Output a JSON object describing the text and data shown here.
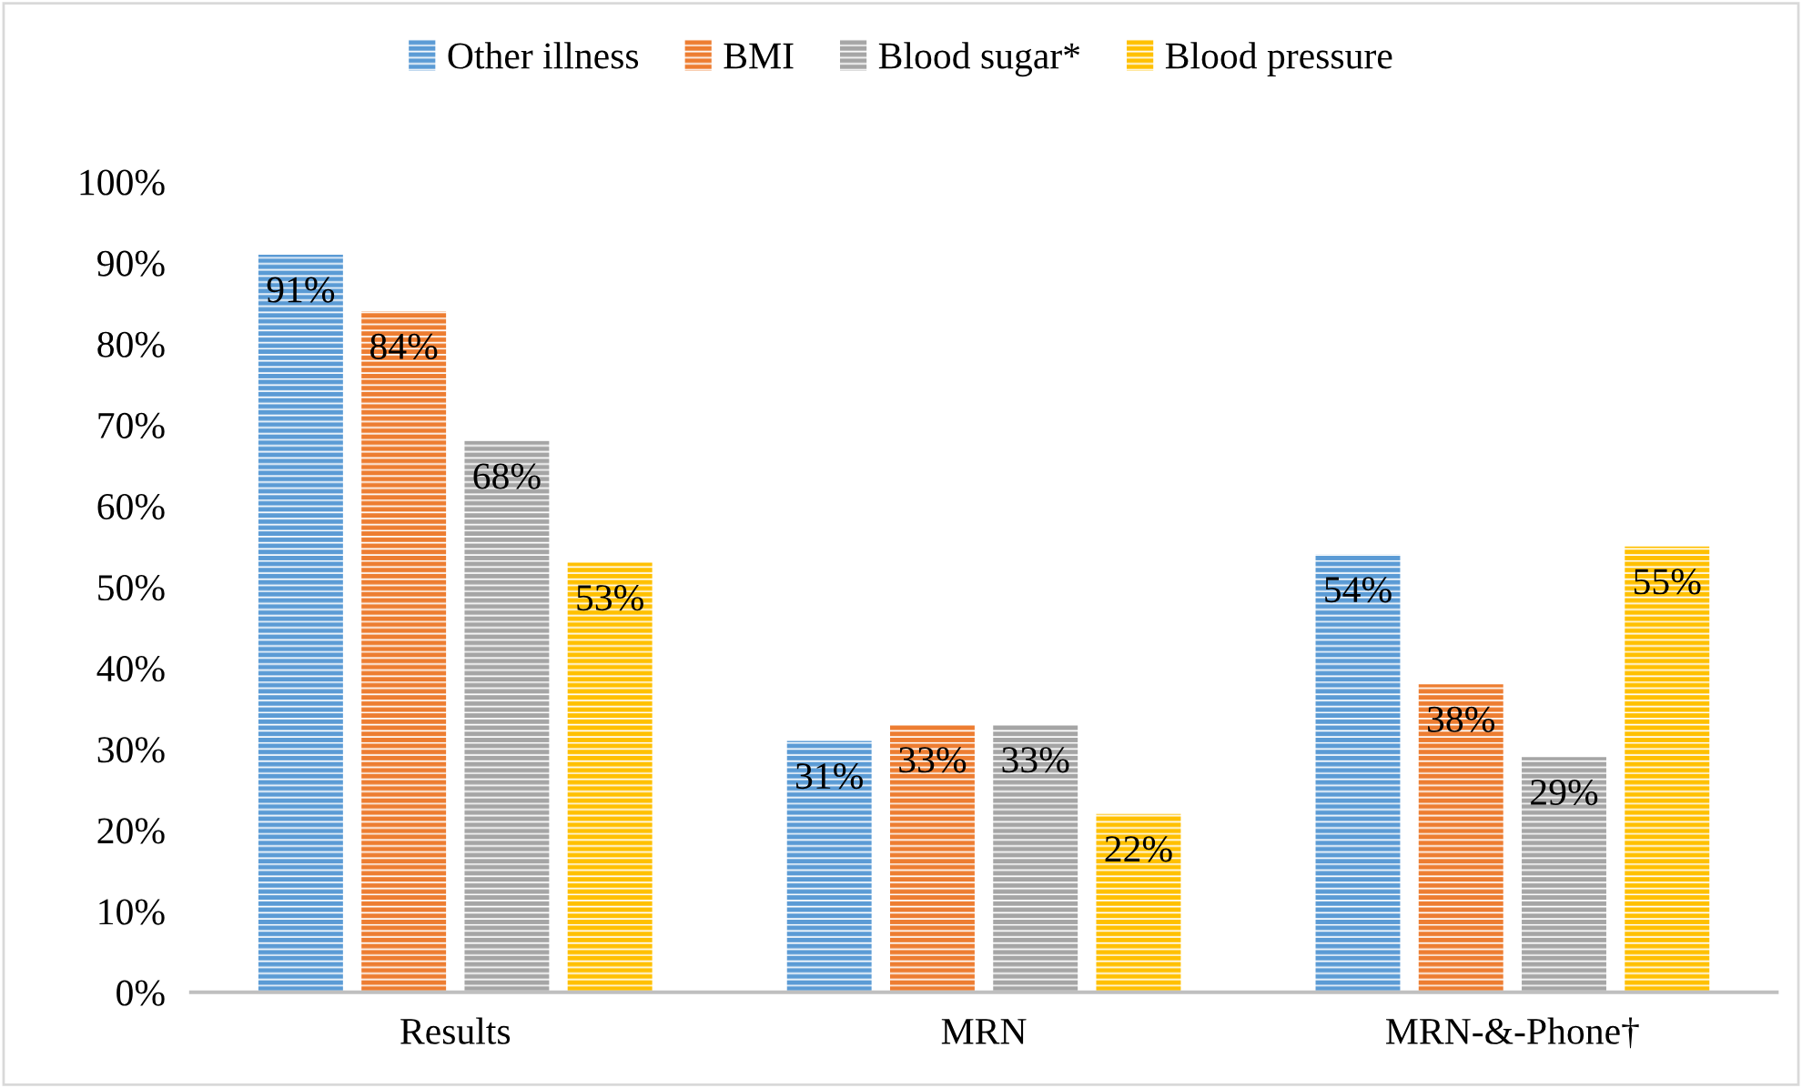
{
  "chart_data": {
    "type": "bar",
    "categories": [
      "Results",
      "MRN",
      "MRN-&-Phone†"
    ],
    "series": [
      {
        "name": "Other illness",
        "color": "#5b9bd5",
        "values": [
          91,
          31,
          54
        ],
        "value_labels": [
          "91%",
          "31%",
          "54%"
        ]
      },
      {
        "name": "BMI",
        "color": "#ed7d31",
        "values": [
          84,
          33,
          38
        ],
        "value_labels": [
          "84%",
          "33%",
          "38%"
        ]
      },
      {
        "name": "Blood sugar*",
        "color": "#a5a5a5",
        "values": [
          68,
          33,
          29
        ],
        "value_labels": [
          "68%",
          "33%",
          "29%"
        ]
      },
      {
        "name": "Blood pressure",
        "color": "#ffc000",
        "values": [
          53,
          22,
          55
        ],
        "value_labels": [
          "53%",
          "22%",
          "55%"
        ]
      }
    ],
    "ylim": [
      0,
      100
    ],
    "yticks": [
      {
        "value": 0,
        "label": "0%"
      },
      {
        "value": 10,
        "label": "10%"
      },
      {
        "value": 20,
        "label": "20%"
      },
      {
        "value": 30,
        "label": "30%"
      },
      {
        "value": 40,
        "label": "40%"
      },
      {
        "value": 50,
        "label": "50%"
      },
      {
        "value": 60,
        "label": "60%"
      },
      {
        "value": 70,
        "label": "70%"
      },
      {
        "value": 80,
        "label": "80%"
      },
      {
        "value": 90,
        "label": "90%"
      },
      {
        "value": 100,
        "label": "100%"
      }
    ],
    "grid": false,
    "legend": "top"
  }
}
